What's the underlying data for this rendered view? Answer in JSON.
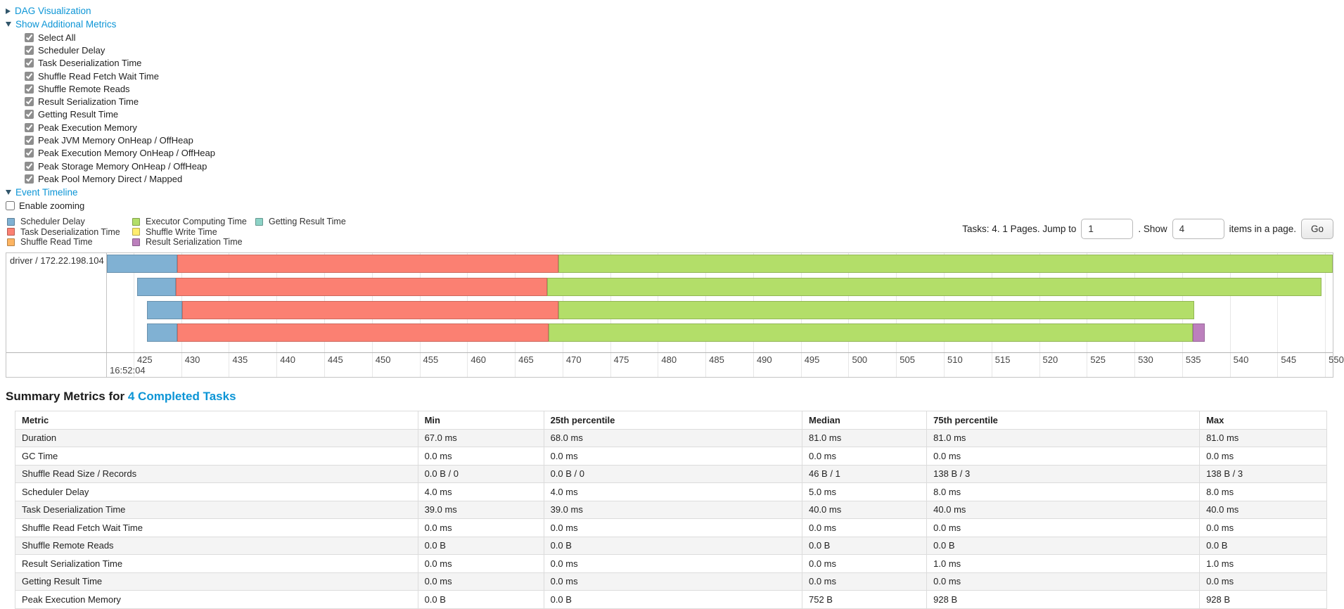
{
  "expanders": {
    "dag": "DAG Visualization",
    "metrics": "Show Additional Metrics",
    "timeline": "Event Timeline"
  },
  "metrics_panel": {
    "checkboxes": [
      {
        "label": "Select All",
        "checked": true
      },
      {
        "label": "Scheduler Delay",
        "checked": true
      },
      {
        "label": "Task Deserialization Time",
        "checked": true
      },
      {
        "label": "Shuffle Read Fetch Wait Time",
        "checked": true
      },
      {
        "label": "Shuffle Remote Reads",
        "checked": true
      },
      {
        "label": "Result Serialization Time",
        "checked": true
      },
      {
        "label": "Getting Result Time",
        "checked": true
      },
      {
        "label": "Peak Execution Memory",
        "checked": true
      },
      {
        "label": "Peak JVM Memory OnHeap / OffHeap",
        "checked": true
      },
      {
        "label": "Peak Execution Memory OnHeap / OffHeap",
        "checked": true
      },
      {
        "label": "Peak Storage Memory OnHeap / OffHeap",
        "checked": true
      },
      {
        "label": "Peak Pool Memory Direct / Mapped",
        "checked": true
      }
    ]
  },
  "enable_zooming": {
    "label": "Enable zooming",
    "checked": false
  },
  "legend": {
    "columns": [
      [
        {
          "label": "Scheduler Delay",
          "phase": "scheduler_delay"
        },
        {
          "label": "Task Deserialization Time",
          "phase": "task_deserialization"
        },
        {
          "label": "Shuffle Read Time",
          "phase": "shuffle_read"
        }
      ],
      [
        {
          "label": "Executor Computing Time",
          "phase": "executor_computing"
        },
        {
          "label": "Shuffle Write Time",
          "phase": "shuffle_write"
        },
        {
          "label": "Result Serialization Time",
          "phase": "result_serialization"
        }
      ],
      [
        {
          "label": "Getting Result Time",
          "phase": "getting_result"
        }
      ]
    ]
  },
  "pagination": {
    "tasks_text": "Tasks: 4. 1 Pages. Jump to",
    "jump_value": "1",
    "show_text": ". Show",
    "show_value": "4",
    "items_text": "items in a page.",
    "go_label": "Go"
  },
  "chart_data": {
    "type": "gantt-timeline",
    "group_label": "driver / 172.22.198.104",
    "colors": {
      "scheduler_delay": "#80B1D3",
      "task_deserialization": "#FB8072",
      "shuffle_read": "#FDB462",
      "executor_computing": "#B3DE69",
      "shuffle_write": "#FFED6F",
      "result_serialization": "#BC80BD",
      "getting_result": "#8DD3C7"
    },
    "axis": {
      "window_start": 422.2,
      "window_end": 550.8,
      "tick_interval": 5,
      "ticks": [
        425,
        430,
        435,
        440,
        445,
        450,
        455,
        460,
        465,
        470,
        475,
        480,
        485,
        490,
        495,
        500,
        505,
        510,
        515,
        520,
        525,
        530,
        535,
        540,
        545,
        550
      ],
      "major_label": "16:52:04"
    },
    "tasks": [
      {
        "name": "task-bar-0",
        "segments": [
          {
            "phase": "scheduler_delay",
            "start": 422.2,
            "end": 429.6
          },
          {
            "phase": "task_deserialization",
            "start": 429.6,
            "end": 469.6
          },
          {
            "phase": "executor_computing",
            "start": 469.6,
            "end": 550.8
          }
        ]
      },
      {
        "name": "task-bar-1",
        "segments": [
          {
            "phase": "scheduler_delay",
            "start": 425.4,
            "end": 429.4
          },
          {
            "phase": "task_deserialization",
            "start": 429.4,
            "end": 468.4
          },
          {
            "phase": "executor_computing",
            "start": 468.4,
            "end": 549.6
          }
        ]
      },
      {
        "name": "task-bar-2",
        "segments": [
          {
            "phase": "scheduler_delay",
            "start": 426.4,
            "end": 430.1
          },
          {
            "phase": "task_deserialization",
            "start": 430.1,
            "end": 469.6
          },
          {
            "phase": "executor_computing",
            "start": 469.6,
            "end": 536.3
          }
        ]
      },
      {
        "name": "task-bar-3",
        "segments": [
          {
            "phase": "scheduler_delay",
            "start": 426.4,
            "end": 429.6
          },
          {
            "phase": "task_deserialization",
            "start": 429.6,
            "end": 468.5
          },
          {
            "phase": "executor_computing",
            "start": 468.5,
            "end": 536.1
          },
          {
            "phase": "result_serialization",
            "start": 536.1,
            "end": 537.4
          }
        ]
      }
    ]
  },
  "summary": {
    "title_prefix": "Summary Metrics for",
    "title_link": "4 Completed Tasks",
    "table": {
      "headers": [
        "Metric",
        "Min",
        "25th percentile",
        "Median",
        "75th percentile",
        "Max"
      ],
      "col_widths": [
        "30.7%",
        "9.6%",
        "19.7%",
        "9.5%",
        "20.8%",
        "9.7%"
      ],
      "rows": [
        {
          "metric": "Duration",
          "values": [
            "67.0 ms",
            "68.0 ms",
            "81.0 ms",
            "81.0 ms",
            "81.0 ms"
          ]
        },
        {
          "metric": "GC Time",
          "values": [
            "0.0 ms",
            "0.0 ms",
            "0.0 ms",
            "0.0 ms",
            "0.0 ms"
          ]
        },
        {
          "metric": "Shuffle Read Size / Records",
          "values": [
            "0.0 B / 0",
            "0.0 B / 0",
            "46 B / 1",
            "138 B / 3",
            "138 B / 3"
          ]
        },
        {
          "metric": "Scheduler Delay",
          "values": [
            "4.0 ms",
            "4.0 ms",
            "5.0 ms",
            "8.0 ms",
            "8.0 ms"
          ]
        },
        {
          "metric": "Task Deserialization Time",
          "values": [
            "39.0 ms",
            "39.0 ms",
            "40.0 ms",
            "40.0 ms",
            "40.0 ms"
          ]
        },
        {
          "metric": "Shuffle Read Fetch Wait Time",
          "values": [
            "0.0 ms",
            "0.0 ms",
            "0.0 ms",
            "0.0 ms",
            "0.0 ms"
          ]
        },
        {
          "metric": "Shuffle Remote Reads",
          "values": [
            "0.0 B",
            "0.0 B",
            "0.0 B",
            "0.0 B",
            "0.0 B"
          ]
        },
        {
          "metric": "Result Serialization Time",
          "values": [
            "0.0 ms",
            "0.0 ms",
            "0.0 ms",
            "1.0 ms",
            "1.0 ms"
          ]
        },
        {
          "metric": "Getting Result Time",
          "values": [
            "0.0 ms",
            "0.0 ms",
            "0.0 ms",
            "0.0 ms",
            "0.0 ms"
          ]
        },
        {
          "metric": "Peak Execution Memory",
          "values": [
            "0.0 B",
            "0.0 B",
            "752 B",
            "928 B",
            "928 B"
          ]
        }
      ]
    }
  }
}
